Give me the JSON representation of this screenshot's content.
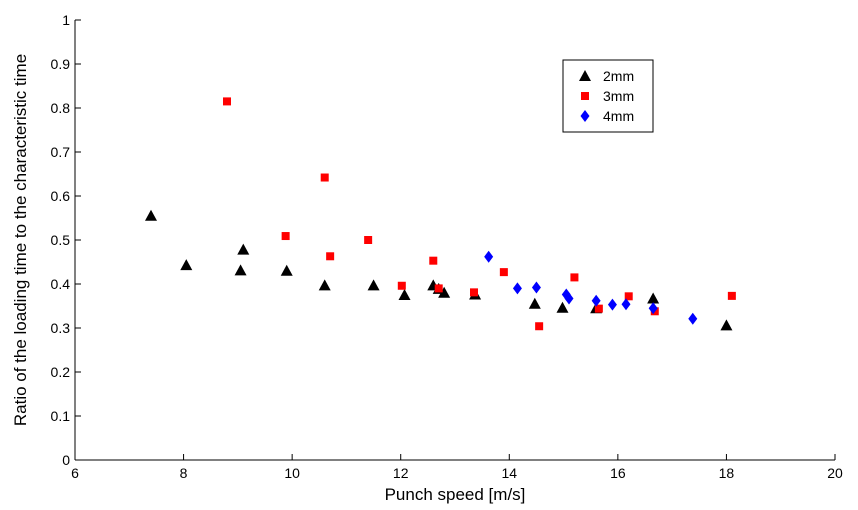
{
  "chart_data": {
    "type": "scatter",
    "title": "",
    "xlabel": "Punch speed [m/s]",
    "ylabel": "Ratio of the loading time to the characteristic time",
    "xlim": [
      6,
      20
    ],
    "ylim": [
      0,
      1
    ],
    "xticks": [
      6,
      8,
      10,
      12,
      14,
      16,
      18,
      20
    ],
    "yticks": [
      0,
      0.1,
      0.2,
      0.3,
      0.4,
      0.5,
      0.6,
      0.7,
      0.8,
      0.9,
      1
    ],
    "xtick_labels": [
      "6",
      "8",
      "10",
      "12",
      "14",
      "16",
      "18",
      "20"
    ],
    "ytick_labels": [
      "0",
      "0.1",
      "0.2",
      "0.3",
      "0.4",
      "0.5",
      "0.6",
      "0.7",
      "0.8",
      "0.9",
      "1"
    ],
    "grid": false,
    "legend_position": "top-right",
    "series": [
      {
        "name": "2mm",
        "marker": "triangle",
        "color": "#000000",
        "points": [
          [
            7.4,
            0.555
          ],
          [
            8.05,
            0.443
          ],
          [
            9.05,
            0.431
          ],
          [
            9.1,
            0.478
          ],
          [
            9.9,
            0.43
          ],
          [
            10.6,
            0.397
          ],
          [
            11.5,
            0.397
          ],
          [
            12.07,
            0.375
          ],
          [
            12.6,
            0.397
          ],
          [
            12.7,
            0.389
          ],
          [
            12.8,
            0.38
          ],
          [
            13.37,
            0.376
          ],
          [
            14.47,
            0.355
          ],
          [
            14.98,
            0.346
          ],
          [
            15.6,
            0.345
          ],
          [
            16.65,
            0.367
          ],
          [
            18.0,
            0.306
          ]
        ]
      },
      {
        "name": "3mm",
        "marker": "square",
        "color": "#ff0000",
        "points": [
          [
            8.8,
            0.815
          ],
          [
            9.88,
            0.509
          ],
          [
            10.6,
            0.642
          ],
          [
            10.7,
            0.463
          ],
          [
            11.4,
            0.5
          ],
          [
            12.02,
            0.396
          ],
          [
            12.6,
            0.453
          ],
          [
            12.7,
            0.39
          ],
          [
            13.35,
            0.381
          ],
          [
            13.9,
            0.427
          ],
          [
            14.55,
            0.304
          ],
          [
            15.2,
            0.415
          ],
          [
            15.65,
            0.344
          ],
          [
            16.2,
            0.372
          ],
          [
            16.68,
            0.338
          ],
          [
            18.1,
            0.373
          ]
        ]
      },
      {
        "name": "4mm",
        "marker": "diamond",
        "color": "#0000ff",
        "points": [
          [
            13.62,
            0.462
          ],
          [
            14.15,
            0.39
          ],
          [
            14.5,
            0.392
          ],
          [
            15.05,
            0.376
          ],
          [
            15.1,
            0.367
          ],
          [
            15.6,
            0.362
          ],
          [
            15.9,
            0.353
          ],
          [
            16.15,
            0.354
          ],
          [
            16.65,
            0.345
          ],
          [
            17.38,
            0.321
          ]
        ]
      }
    ]
  }
}
